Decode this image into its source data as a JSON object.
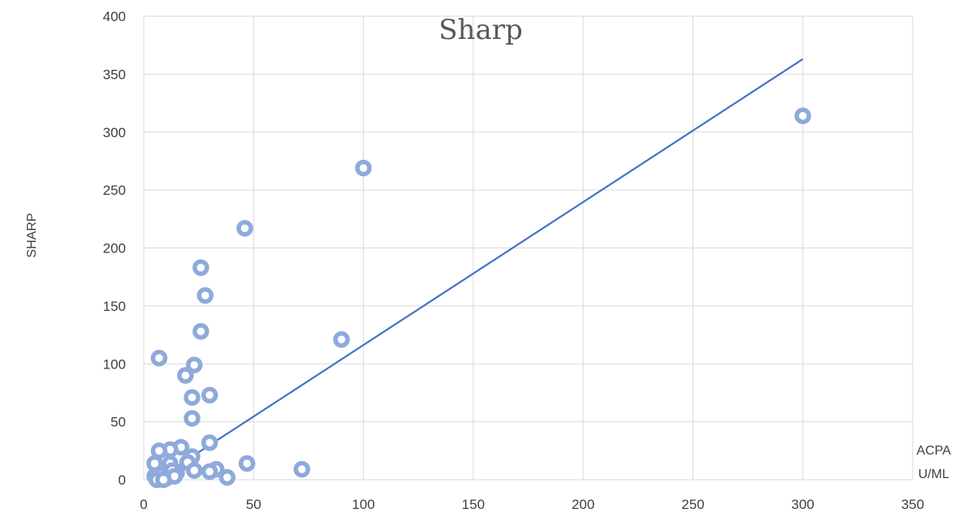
{
  "chart_data": {
    "type": "scatter",
    "title": "Sharp",
    "xlabel_lines": [
      "ACPA",
      "U/ML"
    ],
    "ylabel": "SHARP",
    "xlim": [
      0,
      350
    ],
    "ylim": [
      0,
      400
    ],
    "xticks": [
      0,
      50,
      100,
      150,
      200,
      250,
      300,
      350
    ],
    "yticks": [
      0,
      50,
      100,
      150,
      200,
      250,
      300,
      350,
      400
    ],
    "grid": true,
    "colors": {
      "marker": "#8eaadb",
      "trendline": "#4472c4",
      "grid": "#d9d9d9"
    },
    "points": [
      [
        300,
        314
      ],
      [
        100,
        269
      ],
      [
        46,
        217
      ],
      [
        26,
        183
      ],
      [
        28,
        159
      ],
      [
        26,
        128
      ],
      [
        90,
        121
      ],
      [
        7,
        105
      ],
      [
        23,
        99
      ],
      [
        19,
        90
      ],
      [
        30,
        73
      ],
      [
        22,
        71
      ],
      [
        22,
        53
      ],
      [
        30,
        32
      ],
      [
        17,
        28
      ],
      [
        12,
        26
      ],
      [
        7,
        25
      ],
      [
        22,
        20
      ],
      [
        20,
        15
      ],
      [
        47,
        14
      ],
      [
        12,
        14
      ],
      [
        72,
        9
      ],
      [
        33,
        9
      ],
      [
        30,
        7
      ],
      [
        23,
        8
      ],
      [
        15,
        6
      ],
      [
        13,
        8
      ],
      [
        38,
        2
      ],
      [
        5,
        14
      ],
      [
        5,
        3
      ],
      [
        7,
        2
      ],
      [
        6,
        1
      ],
      [
        8,
        4
      ],
      [
        10,
        1
      ],
      [
        14,
        3
      ],
      [
        6,
        0
      ],
      [
        9,
        0
      ]
    ],
    "trendline": {
      "x": [
        5,
        300
      ],
      "y": [
        -1,
        363
      ]
    }
  }
}
